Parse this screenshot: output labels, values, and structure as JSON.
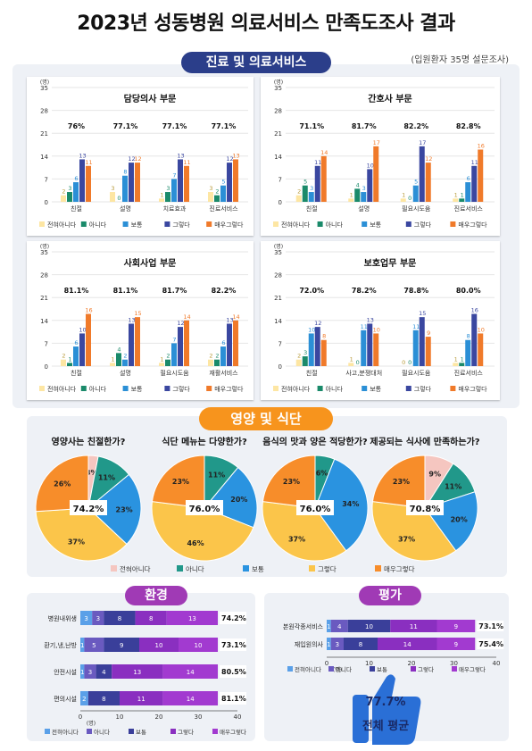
{
  "title": "2023년 성동병원 의료서비스 만족도조사 결과",
  "note": "(입원환자 35명 설문조사)",
  "sections": {
    "medical": "진료 및 의료서비스",
    "nutrition": "영양 및 식단",
    "environment": "환경",
    "evaluation": "평가"
  },
  "colors": {
    "very_dissatisfied": "#fde6a3",
    "dissatisfied": "#1a8a6a",
    "neutral": "#2b8fd6",
    "satisfied": "#3a47a0",
    "very_satisfied": "#f07a2a",
    "pie_very_dissatisfied": "#f5c6c0",
    "pie_dissatisfied": "#21988a",
    "pie_neutral": "#2a93e0",
    "pie_satisfied": "#fbc54a",
    "pie_very_satisfied": "#f78d2a"
  },
  "legend": [
    "전혀아니다",
    "아니다",
    "보통",
    "그렇다",
    "매우그렇다"
  ],
  "overall": {
    "value": "77.7%",
    "label": "전체 평균"
  },
  "chart_data": [
    {
      "type": "bar",
      "title": "담당의사 부문",
      "ylabel": "(명)",
      "ylim": [
        0,
        35
      ],
      "yticks": [
        0,
        7,
        14,
        21,
        28,
        35
      ],
      "categories": [
        "친절",
        "설명",
        "치료효과",
        "진료서비스"
      ],
      "rates": [
        "76%",
        "77.1%",
        "77.1%",
        "77.1%"
      ],
      "series": [
        {
          "name": "전혀아니다",
          "values": [
            2,
            3,
            1,
            3
          ]
        },
        {
          "name": "아니다",
          "values": [
            3,
            0,
            3,
            2
          ]
        },
        {
          "name": "보통",
          "values": [
            6,
            8,
            7,
            5
          ]
        },
        {
          "name": "그렇다",
          "values": [
            13,
            12,
            13,
            12
          ]
        },
        {
          "name": "매우그렇다",
          "values": [
            11,
            12,
            11,
            13
          ]
        }
      ]
    },
    {
      "type": "bar",
      "title": "간호사 부문",
      "ylabel": "(명)",
      "ylim": [
        0,
        35
      ],
      "yticks": [
        0,
        7,
        14,
        21,
        28,
        35
      ],
      "categories": [
        "친절",
        "설명",
        "필요시도움",
        "진료서비스"
      ],
      "rates": [
        "71.1%",
        "81.7%",
        "82.2%",
        "82.8%"
      ],
      "series": [
        {
          "name": "전혀아니다",
          "values": [
            2,
            1,
            1,
            1
          ]
        },
        {
          "name": "아니다",
          "values": [
            5,
            4,
            0,
            1
          ]
        },
        {
          "name": "보통",
          "values": [
            3,
            3,
            5,
            6
          ]
        },
        {
          "name": "그렇다",
          "values": [
            11,
            10,
            17,
            11
          ]
        },
        {
          "name": "매우그렇다",
          "values": [
            14,
            17,
            12,
            16
          ]
        }
      ]
    },
    {
      "type": "bar",
      "title": "사회사업 부문",
      "ylabel": "(명)",
      "ylim": [
        0,
        35
      ],
      "yticks": [
        0,
        7,
        14,
        21,
        28,
        35
      ],
      "categories": [
        "친절",
        "설명",
        "필요시도움",
        "재활서비스"
      ],
      "rates": [
        "81.1%",
        "81.1%",
        "81.7%",
        "82.2%"
      ],
      "series": [
        {
          "name": "전혀아니다",
          "values": [
            2,
            1,
            1,
            2
          ]
        },
        {
          "name": "아니다",
          "values": [
            1,
            4,
            2,
            2
          ]
        },
        {
          "name": "보통",
          "values": [
            6,
            2,
            7,
            6
          ]
        },
        {
          "name": "그렇다",
          "values": [
            10,
            13,
            12,
            13
          ]
        },
        {
          "name": "매우그렇다",
          "values": [
            16,
            15,
            14,
            14
          ]
        }
      ]
    },
    {
      "type": "bar",
      "title": "보호업무 부문",
      "ylabel": "(명)",
      "ylim": [
        0,
        35
      ],
      "yticks": [
        0,
        7,
        14,
        21,
        28,
        35
      ],
      "categories": [
        "친절",
        "사고,분쟁대처",
        "필요시도움",
        "진료서비스"
      ],
      "rates": [
        "72.0%",
        "78.2%",
        "78.8%",
        "80.0%"
      ],
      "series": [
        {
          "name": "전혀아니다",
          "values": [
            2,
            1,
            0,
            1
          ]
        },
        {
          "name": "아니다",
          "values": [
            3,
            0,
            0,
            1
          ]
        },
        {
          "name": "보통",
          "values": [
            10,
            11,
            11,
            8
          ]
        },
        {
          "name": "그렇다",
          "values": [
            12,
            13,
            15,
            16
          ]
        },
        {
          "name": "매우그렇다",
          "values": [
            8,
            10,
            9,
            10
          ]
        }
      ]
    },
    {
      "type": "pie",
      "title": "영양사는 친절한가?",
      "center": "74.2%",
      "slices": [
        {
          "name": "전혀아니다",
          "value": 3,
          "label": "3%"
        },
        {
          "name": "아니다",
          "value": 11,
          "label": "11%"
        },
        {
          "name": "보통",
          "value": 23,
          "label": "23%"
        },
        {
          "name": "그렇다",
          "value": 37,
          "label": "37%"
        },
        {
          "name": "매우그렇다",
          "value": 26,
          "label": "26%"
        }
      ]
    },
    {
      "type": "pie",
      "title": "식단 메뉴는 다양한가?",
      "center": "76.0%",
      "slices": [
        {
          "name": "전혀아니다",
          "value": 0,
          "label": ""
        },
        {
          "name": "아니다",
          "value": 11,
          "label": "11%"
        },
        {
          "name": "보통",
          "value": 20,
          "label": "20%"
        },
        {
          "name": "그렇다",
          "value": 46,
          "label": "46%"
        },
        {
          "name": "매우그렇다",
          "value": 23,
          "label": "23%"
        }
      ]
    },
    {
      "type": "pie",
      "title": "음식의 맛과 양은 적당한가?",
      "center": "76.0%",
      "slices": [
        {
          "name": "전혀아니다",
          "value": 0,
          "label": ""
        },
        {
          "name": "아니다",
          "value": 6,
          "label": "6%"
        },
        {
          "name": "보통",
          "value": 34,
          "label": "34%"
        },
        {
          "name": "그렇다",
          "value": 37,
          "label": "37%"
        },
        {
          "name": "매우그렇다",
          "value": 23,
          "label": "23%"
        }
      ]
    },
    {
      "type": "pie",
      "title": "제공되는 식사에 만족하는가?",
      "center": "70.8%",
      "slices": [
        {
          "name": "전혀아니다",
          "value": 9,
          "label": "9%"
        },
        {
          "name": "아니다",
          "value": 11,
          "label": "11%"
        },
        {
          "name": "보통",
          "value": 20,
          "label": "20%"
        },
        {
          "name": "그렇다",
          "value": 37,
          "label": "37%"
        },
        {
          "name": "매우그렇다",
          "value": 23,
          "label": "23%"
        }
      ]
    },
    {
      "type": "bar",
      "orientation": "horizontal-stacked",
      "title": "환경",
      "xlabel": "(명)",
      "xlim": [
        0,
        40
      ],
      "xticks": [
        0,
        10,
        20,
        30,
        40
      ],
      "categories": [
        "병원내위생",
        "환기,냉,난방",
        "안전시설",
        "편의시설"
      ],
      "rates": [
        "74.2%",
        "73.1%",
        "80.5%",
        "81.1%"
      ],
      "series": [
        {
          "name": "전혀아니다",
          "values": [
            3,
            1,
            1,
            2
          ]
        },
        {
          "name": "아니다",
          "values": [
            3,
            5,
            3,
            0
          ]
        },
        {
          "name": "보통",
          "values": [
            8,
            9,
            4,
            8
          ]
        },
        {
          "name": "그렇다",
          "values": [
            8,
            10,
            13,
            11
          ]
        },
        {
          "name": "매우그렇다",
          "values": [
            13,
            10,
            14,
            14
          ]
        }
      ]
    },
    {
      "type": "bar",
      "orientation": "horizontal-stacked",
      "title": "평가",
      "xlabel": "(명)",
      "xlim": [
        0,
        40
      ],
      "xticks": [
        0,
        10,
        20,
        30,
        40
      ],
      "categories": [
        "본원각종서비스",
        "재입원의사"
      ],
      "rates": [
        "73.1%",
        "75.4%"
      ],
      "series": [
        {
          "name": "전혀아니다",
          "values": [
            1,
            1
          ]
        },
        {
          "name": "아니다",
          "values": [
            4,
            3
          ]
        },
        {
          "name": "보통",
          "values": [
            10,
            8
          ]
        },
        {
          "name": "그렇다",
          "values": [
            11,
            14
          ]
        },
        {
          "name": "매우그렇다",
          "values": [
            9,
            9
          ]
        }
      ]
    }
  ]
}
